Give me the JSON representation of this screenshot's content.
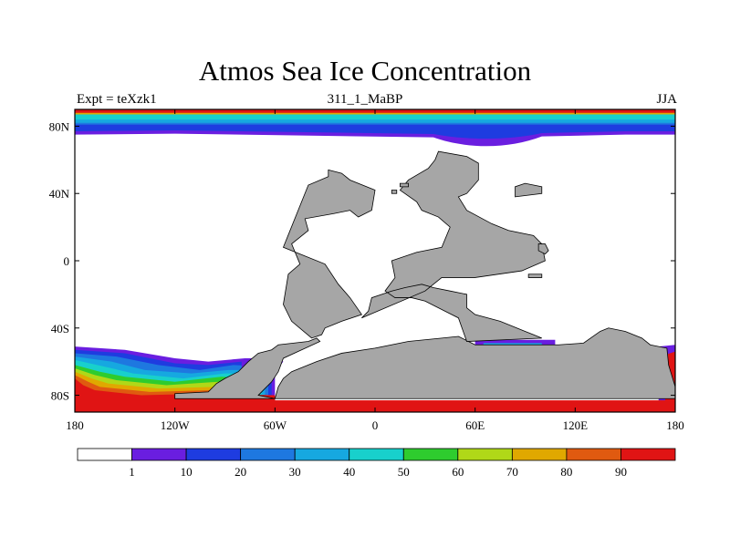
{
  "chart_data": {
    "type": "heatmap",
    "title": "Atmos Sea Ice Concentration",
    "left_label": "Expt = teXzk1",
    "center_label": "311_1_MaBP",
    "right_label": "JJA",
    "xlim": [
      -180,
      180
    ],
    "ylim": [
      -90,
      90
    ],
    "x_ticks": [
      {
        "value": -180,
        "label": "180"
      },
      {
        "value": -120,
        "label": "120W"
      },
      {
        "value": -60,
        "label": "60W"
      },
      {
        "value": 0,
        "label": "0"
      },
      {
        "value": 60,
        "label": "60E"
      },
      {
        "value": 120,
        "label": "120E"
      },
      {
        "value": 180,
        "label": "180"
      }
    ],
    "y_ticks": [
      {
        "value": 80,
        "label": "80N"
      },
      {
        "value": 40,
        "label": "40N"
      },
      {
        "value": 0,
        "label": "0"
      },
      {
        "value": -40,
        "label": "40S"
      },
      {
        "value": -80,
        "label": "80S"
      }
    ],
    "colorbar": {
      "levels": [
        "1",
        "10",
        "20",
        "30",
        "40",
        "50",
        "60",
        "70",
        "80",
        "90"
      ],
      "colors": [
        "#ffffff",
        "#6a1ee0",
        "#1e3ce0",
        "#1e78e0",
        "#16a8e0",
        "#18d0cc",
        "#2ecc2e",
        "#b0d818",
        "#e0a800",
        "#e05a10",
        "#e01414"
      ]
    },
    "land_color": "#a6a6a6",
    "north_ice_bands": [
      {
        "level": "90",
        "lat": [
          88,
          90
        ]
      },
      {
        "level": "70",
        "lat": [
          87,
          88
        ]
      },
      {
        "level": "40",
        "lat": [
          84,
          87
        ]
      },
      {
        "level": "30",
        "lat": [
          82,
          84
        ]
      },
      {
        "level": "20",
        "lat": [
          81,
          82
        ]
      },
      {
        "level": "10",
        "lat": [
          77,
          81
        ]
      },
      {
        "level": "1",
        "lat": [
          75,
          77
        ]
      }
    ],
    "south_ice_notes": "Sea ice 1-90% around Antarctica from 180 to 60W, concentration above 90% near the coast"
  }
}
